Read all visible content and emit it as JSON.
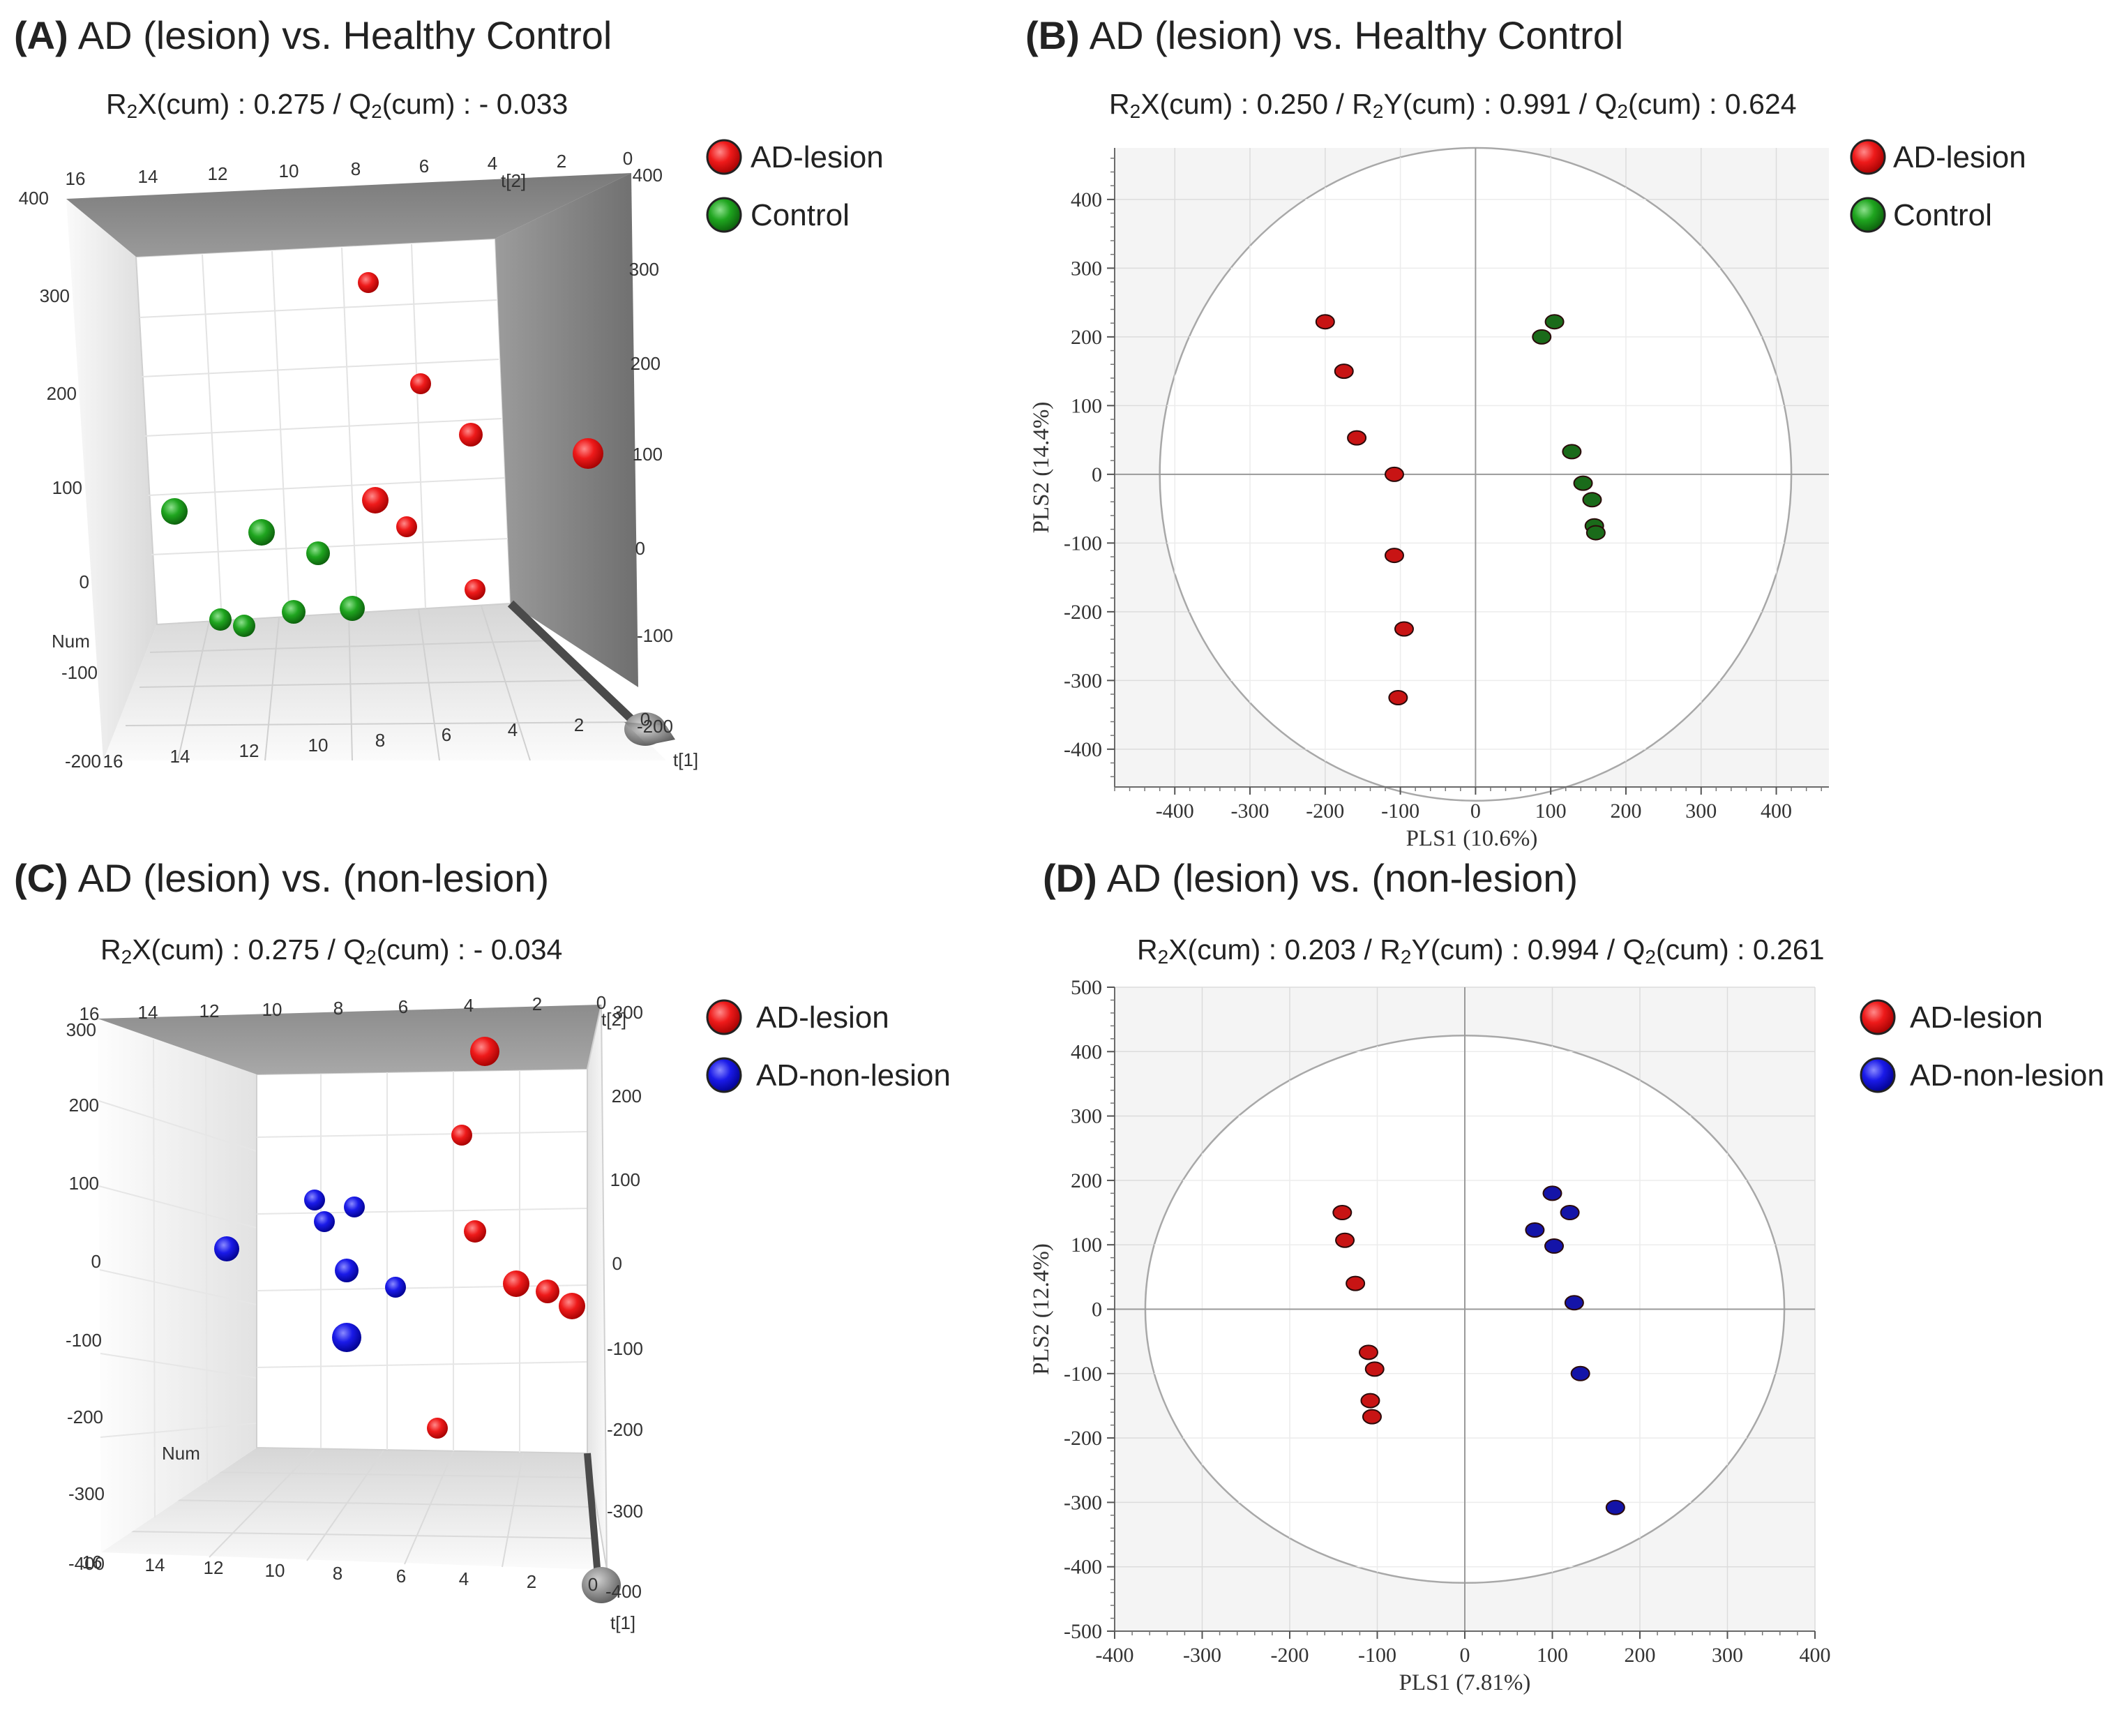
{
  "panels": [
    {
      "letter": "(A)",
      "title": "AD (lesion) vs. Healthy Control",
      "stats": [
        {
          "t": "R"
        },
        {
          "t": "2",
          "sub": true
        },
        {
          "t": "X(cum) : 0.275 / Q"
        },
        {
          "t": "2",
          "sub": true
        },
        {
          "t": "(cum) :  - 0.033"
        }
      ],
      "legend": [
        {
          "label": "AD-lesion",
          "color": "#e01010"
        },
        {
          "label": "Control",
          "color": "#1f8f1f"
        }
      ]
    },
    {
      "letter": "(B)",
      "title": "AD (lesion) vs. Healthy Control",
      "stats": [
        {
          "t": "R"
        },
        {
          "t": "2",
          "sub": true
        },
        {
          "t": "X(cum) : 0.250 / R"
        },
        {
          "t": "2",
          "sub": true
        },
        {
          "t": "Y(cum) : 0.991 / Q"
        },
        {
          "t": "2",
          "sub": true
        },
        {
          "t": "(cum) : 0.624"
        }
      ],
      "legend": [
        {
          "label": "AD-lesion",
          "color": "#e01010"
        },
        {
          "label": "Control",
          "color": "#1f8f1f"
        }
      ]
    },
    {
      "letter": "(C)",
      "title": "AD (lesion) vs. (non-lesion)",
      "stats": [
        {
          "t": "R"
        },
        {
          "t": "2",
          "sub": true
        },
        {
          "t": "X(cum) : 0.275 / Q"
        },
        {
          "t": "2",
          "sub": true
        },
        {
          "t": "(cum) :  - 0.034"
        }
      ],
      "legend": [
        {
          "label": "AD-lesion",
          "color": "#e01010"
        },
        {
          "label": "AD-non-lesion",
          "color": "#1010d8"
        }
      ]
    },
    {
      "letter": "(D)",
      "title": "AD (lesion) vs. (non-lesion)",
      "stats": [
        {
          "t": "R"
        },
        {
          "t": "2",
          "sub": true
        },
        {
          "t": "X(cum) : 0.203 / R"
        },
        {
          "t": "2",
          "sub": true
        },
        {
          "t": "Y(cum) : 0.994 / Q"
        },
        {
          "t": "2",
          "sub": true
        },
        {
          "t": "(cum) : 0.261"
        }
      ],
      "legend": [
        {
          "label": "AD-lesion",
          "color": "#e01010"
        },
        {
          "label": "AD-non-lesion",
          "color": "#1010d8"
        }
      ]
    }
  ],
  "chart_data": [
    {
      "panel": "A",
      "type": "scatter",
      "projection": "3d",
      "axis_labels": {
        "t1": "t[1]",
        "t2": "t[2]",
        "num": "Num"
      },
      "ticks": {
        "vertical_left": [
          "400",
          "300",
          "200",
          "100",
          "0",
          "-100",
          "-200"
        ],
        "vertical_right": [
          "400",
          "300",
          "200",
          "100",
          "0",
          "-100",
          "-200"
        ],
        "top": [
          "16",
          "14",
          "12",
          "10",
          "8",
          "6",
          "4",
          "2",
          "0"
        ],
        "bottom": [
          "16",
          "14",
          "12",
          "10",
          "8",
          "6",
          "4",
          "2",
          "0"
        ]
      },
      "series": [
        {
          "name": "AD-lesion",
          "color": "#e01010"
        },
        {
          "name": "Control",
          "color": "#1f8f1f"
        }
      ]
    },
    {
      "panel": "B",
      "type": "scatter",
      "xlabel": "PLS1 (10.6%)",
      "ylabel": "PLS2 (14.4%)",
      "xlim": [
        -480,
        470
      ],
      "ylim": [
        -455,
        475
      ],
      "xticks": [
        -400,
        -300,
        -200,
        -100,
        0,
        100,
        200,
        300,
        400
      ],
      "yticks": [
        -400,
        -300,
        -200,
        -100,
        0,
        100,
        200,
        300,
        400
      ],
      "grid": true,
      "ellipse": {
        "rx": 420,
        "ry": 475
      },
      "series": [
        {
          "name": "AD-lesion",
          "color": "#c81414",
          "x": [
            -200,
            -175,
            -158,
            -108,
            -108,
            -95,
            -103
          ],
          "y": [
            222,
            150,
            53,
            0,
            -118,
            -225,
            -325
          ]
        },
        {
          "name": "Control",
          "color": "#1a6b1a",
          "x": [
            88,
            105,
            128,
            143,
            155,
            158,
            160
          ],
          "y": [
            200,
            222,
            33,
            -13,
            -37,
            -75,
            -85
          ]
        }
      ]
    },
    {
      "panel": "C",
      "type": "scatter",
      "projection": "3d",
      "axis_labels": {
        "t1": "t[1]",
        "t2": "t[2]",
        "num": "Num"
      },
      "ticks": {
        "vertical_left": [
          "300",
          "200",
          "100",
          "0",
          "-100",
          "-200",
          "-300",
          "-400"
        ],
        "vertical_right": [
          "300",
          "200",
          "100",
          "0",
          "-100",
          "-200",
          "-300",
          "-400"
        ],
        "top": [
          "16",
          "14",
          "12",
          "10",
          "8",
          "6",
          "4",
          "2",
          "0"
        ],
        "bottom": [
          "16",
          "14",
          "12",
          "10",
          "8",
          "6",
          "4",
          "2",
          "0"
        ]
      },
      "series": [
        {
          "name": "AD-lesion",
          "color": "#e01010"
        },
        {
          "name": "AD-non-lesion",
          "color": "#1010d8"
        }
      ]
    },
    {
      "panel": "D",
      "type": "scatter",
      "xlabel": "PLS1 (7.81%)",
      "ylabel": "PLS2 (12.4%)",
      "xlim": [
        -400,
        400
      ],
      "ylim": [
        -500,
        500
      ],
      "xticks": [
        -400,
        -300,
        -200,
        -100,
        0,
        100,
        200,
        300,
        400
      ],
      "yticks": [
        -500,
        -400,
        -300,
        -200,
        -100,
        0,
        100,
        200,
        300,
        400,
        500
      ],
      "grid": true,
      "ellipse": {
        "rx": 365,
        "ry": 425
      },
      "series": [
        {
          "name": "AD-lesion",
          "color": "#c81414",
          "x": [
            -140,
            -137,
            -125,
            -110,
            -103,
            -108,
            -106
          ],
          "y": [
            150,
            107,
            40,
            -67,
            -93,
            -142,
            -167
          ]
        },
        {
          "name": "AD-non-lesion",
          "color": "#1414a8",
          "x": [
            100,
            120,
            80,
            102,
            125,
            132,
            172
          ],
          "y": [
            180,
            150,
            123,
            98,
            10,
            -100,
            -308
          ]
        }
      ]
    }
  ]
}
